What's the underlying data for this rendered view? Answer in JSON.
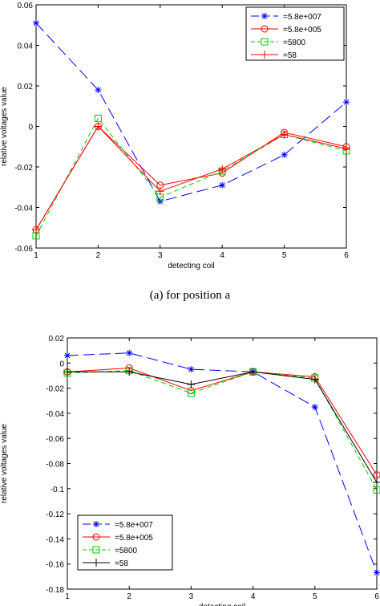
{
  "caption": "(a) for position a",
  "chart_data": [
    {
      "type": "line",
      "xlabel": "detecting coil",
      "ylabel": "relative voltages value",
      "xlim": [
        1,
        6
      ],
      "ylim": [
        -0.06,
        0.06
      ],
      "xticks": [
        "1",
        "2",
        "3",
        "4",
        "5",
        "6"
      ],
      "yticks": [
        "0.06",
        "0.04",
        "0.02",
        "0",
        "-0.02",
        "-0.04",
        "-0.06"
      ],
      "grid": false,
      "legend_position": "top-right",
      "x": [
        1,
        2,
        3,
        4,
        5,
        6
      ],
      "series": [
        {
          "name": "=5.8e+007",
          "color": "#0000ff",
          "marker": "star",
          "dash": "long-dash",
          "values": [
            0.051,
            0.018,
            -0.037,
            -0.029,
            -0.014,
            0.012
          ]
        },
        {
          "name": "=5.8e+005",
          "color": "#ff0000",
          "marker": "circle",
          "dash": "solid",
          "values": [
            -0.051,
            0.0,
            -0.029,
            -0.023,
            -0.003,
            -0.01
          ]
        },
        {
          "name": "=5800",
          "color": "#00cc00",
          "marker": "square",
          "dash": "dashed",
          "values": [
            -0.054,
            0.004,
            -0.035,
            -0.022,
            -0.004,
            -0.012
          ]
        },
        {
          "name": "=58",
          "color": "#ff0000",
          "marker": "plus",
          "dash": "solid",
          "values": [
            -0.051,
            0.0,
            -0.032,
            -0.021,
            -0.004,
            -0.011
          ]
        }
      ]
    },
    {
      "type": "line",
      "xlabel": "detecting coil",
      "ylabel": "relative voltages value",
      "xlim": [
        1,
        6
      ],
      "ylim": [
        -0.18,
        0.02
      ],
      "xticks": [
        "1",
        "2",
        "3",
        "4",
        "5",
        "6"
      ],
      "yticks": [
        "0.02",
        "0",
        "-0.02",
        "-0.04",
        "-0.06",
        "-0.08",
        "-0.1",
        "-0.12",
        "-0.14",
        "-0.16",
        "-0.18"
      ],
      "grid": false,
      "legend_position": "bottom-left",
      "x": [
        1,
        2,
        3,
        4,
        5,
        6
      ],
      "series": [
        {
          "name": "=5.8e+007",
          "color": "#0000ff",
          "marker": "star",
          "dash": "long-dash",
          "values": [
            0.006,
            0.008,
            -0.005,
            -0.007,
            -0.035,
            -0.167
          ]
        },
        {
          "name": "=5.8e+005",
          "color": "#ff0000",
          "marker": "circle",
          "dash": "solid",
          "values": [
            -0.007,
            -0.004,
            -0.022,
            -0.007,
            -0.011,
            -0.089
          ]
        },
        {
          "name": "=5800",
          "color": "#00cc00",
          "marker": "square",
          "dash": "dashed",
          "values": [
            -0.008,
            -0.006,
            -0.024,
            -0.007,
            -0.012,
            -0.101
          ]
        },
        {
          "name": "=58",
          "color": "#000000",
          "marker": "plus",
          "dash": "solid",
          "values": [
            -0.007,
            -0.007,
            -0.017,
            -0.007,
            -0.013,
            -0.095
          ]
        }
      ]
    }
  ]
}
